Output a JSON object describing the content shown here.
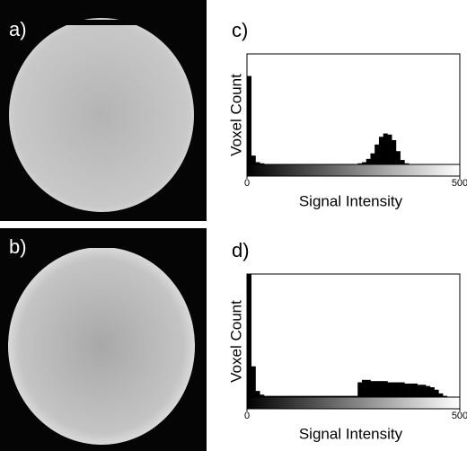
{
  "image_labels": [
    "a)",
    "b)"
  ],
  "chart_data": [
    {
      "type": "histogram",
      "panel_label": "c)",
      "xlabel": "Signal Intensity",
      "ylabel": "Voxel Count",
      "color": "#000000",
      "bins": [
        0,
        10,
        20,
        30,
        40,
        50,
        60,
        70,
        80,
        90,
        100,
        110,
        120,
        130,
        140,
        150,
        160,
        170,
        180,
        190,
        200,
        210,
        220,
        230,
        240,
        250,
        260,
        270,
        280,
        290,
        300,
        310,
        320,
        330,
        340,
        350,
        360,
        370,
        380,
        390,
        400,
        410,
        420,
        430,
        440,
        450,
        460,
        470,
        480,
        490,
        500
      ],
      "counts": [
        80,
        8,
        2,
        1,
        0,
        0,
        0,
        0,
        0,
        0,
        0,
        0,
        0,
        0,
        0,
        0,
        0,
        0,
        0,
        0,
        0,
        0,
        0,
        0,
        0,
        0,
        1,
        2,
        5,
        10,
        18,
        25,
        28,
        27,
        22,
        12,
        4,
        1,
        0,
        0,
        0,
        0,
        0,
        0,
        0,
        0,
        0,
        0,
        0,
        0
      ],
      "xlim": [
        0,
        500
      ],
      "xticks": [
        0,
        500
      ],
      "ylim": [
        0,
        100
      ]
    },
    {
      "type": "histogram",
      "panel_label": "d)",
      "xlabel": "Signal Intensity",
      "ylabel": "Voxel Count",
      "color": "#000000",
      "bins": [
        0,
        10,
        20,
        30,
        40,
        50,
        60,
        70,
        80,
        90,
        100,
        110,
        120,
        130,
        140,
        150,
        160,
        170,
        180,
        190,
        200,
        210,
        220,
        230,
        240,
        250,
        260,
        270,
        280,
        290,
        300,
        310,
        320,
        330,
        340,
        350,
        360,
        370,
        380,
        390,
        400,
        410,
        420,
        430,
        440,
        450,
        460,
        470,
        480,
        490,
        500
      ],
      "counts": [
        100,
        25,
        5,
        2,
        1,
        1,
        1,
        1,
        1,
        1,
        1,
        1,
        1,
        1,
        1,
        1,
        1,
        1,
        1,
        1,
        1,
        1,
        1,
        1,
        1,
        1,
        12,
        14,
        14,
        13,
        13,
        13,
        13,
        12,
        12,
        12,
        12,
        11,
        11,
        11,
        10,
        10,
        9,
        8,
        6,
        3,
        1,
        0,
        0,
        0
      ],
      "xlim": [
        0,
        500
      ],
      "xticks": [
        0,
        500
      ],
      "ylim": [
        0,
        100
      ]
    }
  ]
}
